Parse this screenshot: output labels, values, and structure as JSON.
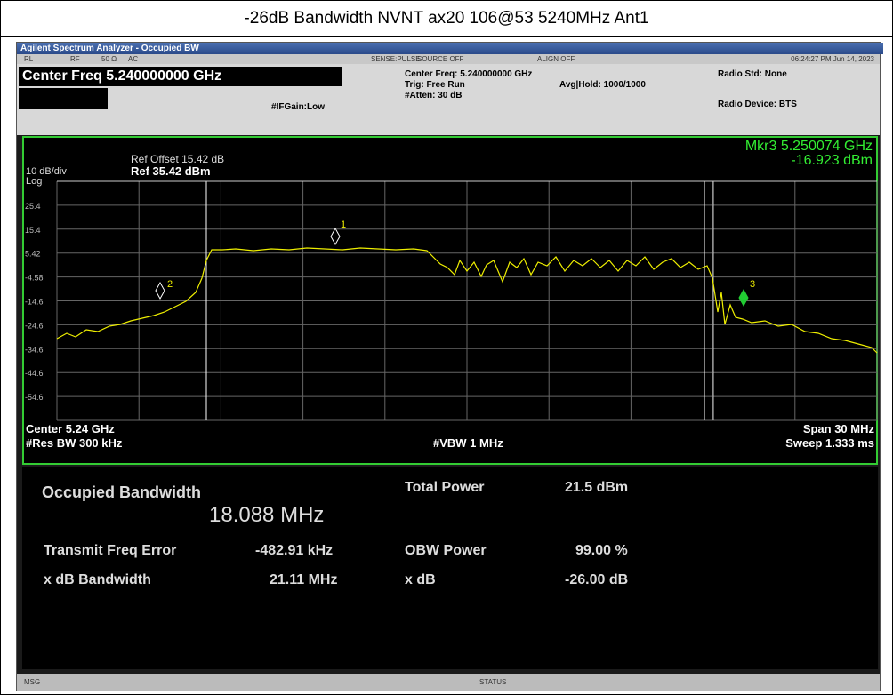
{
  "title": "-26dB Bandwidth NVNT ax20 106@53 5240MHz Ant1",
  "window": {
    "title": "Agilent Spectrum Analyzer - Occupied BW",
    "status": [
      "RL",
      "RF",
      "50 Ω",
      "AC",
      "SENSE:PULSE",
      "SOURCE OFF",
      "ALIGN OFF"
    ],
    "timestamp": "06:24:27 PM Jun 14, 2023"
  },
  "header": {
    "center_freq": "Center Freq 5.240000000 GHz",
    "if_gain": "#IFGain:Low",
    "center_freq_info": "Center Freq: 5.240000000 GHz",
    "trig": "Trig: Free Run",
    "atten": "#Atten: 30 dB",
    "avg_hold": "Avg|Hold: 1000/1000",
    "radio_std": "Radio Std: None",
    "radio_device": "Radio Device: BTS"
  },
  "graph": {
    "ref_offset": "Ref Offset 15.42 dB",
    "ref_level": "Ref 35.42 dBm",
    "scale": "10 dB/div",
    "log": "Log",
    "y_labels": [
      "25.4",
      "15.4",
      "5.42",
      "-4.58",
      "-14.6",
      "-24.6",
      "-34.6",
      "-44.6",
      "-54.6"
    ],
    "marker_readout": "Mkr3  5.250074 GHz",
    "marker_value": "-16.923 dBm",
    "markers": [
      "1",
      "2",
      "3"
    ],
    "center": "Center  5.24 GHz",
    "res_bw": "#Res BW  300 kHz",
    "vbw": "#VBW  1 MHz",
    "span": "Span 30 MHz",
    "sweep": "Sweep  1.333 ms"
  },
  "results": {
    "obw_label": "Occupied Bandwidth",
    "obw_value": "18.088 MHz",
    "total_power_label": "Total Power",
    "total_power_value": "21.5 dBm",
    "freq_error_label": "Transmit Freq Error",
    "freq_error_value": "-482.91 kHz",
    "obw_power_label": "OBW Power",
    "obw_power_value": "99.00 %",
    "xdb_bw_label": "x dB Bandwidth",
    "xdb_bw_value": "21.11 MHz",
    "xdb_label": "x dB",
    "xdb_value": "-26.00 dB"
  },
  "statusbar": {
    "msg": "MSG",
    "status": "STATUS"
  }
}
